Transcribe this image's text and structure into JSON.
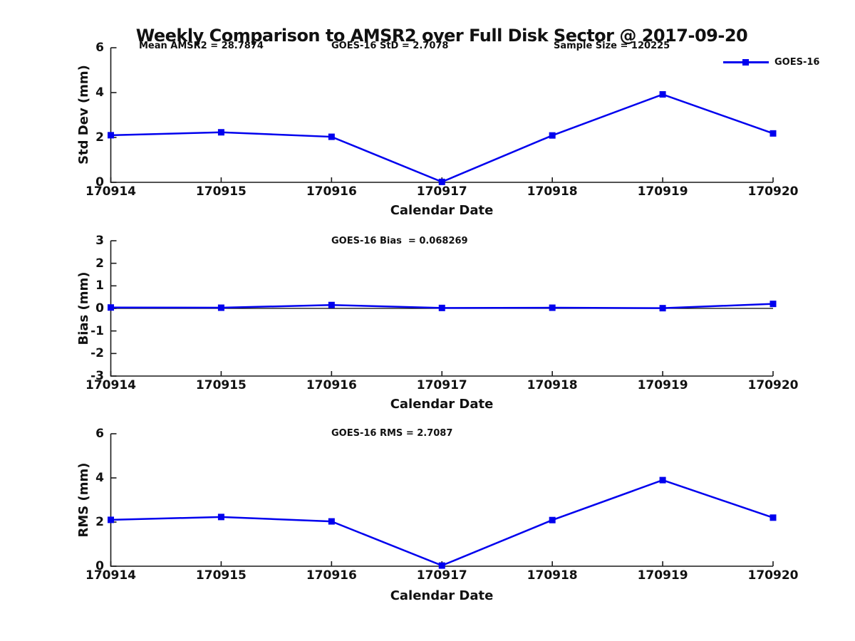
{
  "figure": {
    "title": "Weekly Comparison to AMSR2 over Full Disk Sector @ 2017-09-20",
    "background": "#ffffff"
  },
  "colors": {
    "series": "#0000EE",
    "axis": "#1a1a1a",
    "text": "#111111",
    "zero_line": "#000000"
  },
  "legend": {
    "label": "GOES-16",
    "marker": "filled-square",
    "position": "top-right"
  },
  "annotations": {
    "mean_amsr2": "Mean AMSR2 = 28.7874",
    "goes_std": "GOES-16 StD = 2.7078",
    "sample_size": "Sample Size = 120225",
    "goes_bias": "GOES-16 Bias  = 0.068269",
    "goes_rms": "GOES-16 RMS = 2.7087"
  },
  "chart_data": [
    {
      "type": "line",
      "name": "std-dev",
      "categories": [
        "170914",
        "170915",
        "170916",
        "170917",
        "170918",
        "170919",
        "170920"
      ],
      "series": [
        {
          "name": "GOES-16",
          "values": [
            2.1,
            2.23,
            2.03,
            0.02,
            2.09,
            3.92,
            2.18
          ]
        }
      ],
      "xlabel": "Calendar Date",
      "ylabel": "Std Dev (mm)",
      "ylim": [
        0,
        6
      ],
      "yticks": [
        0,
        2,
        4,
        6
      ],
      "grid": false,
      "zero_line": false,
      "legend_position": "top-right"
    },
    {
      "type": "line",
      "name": "bias",
      "categories": [
        "170914",
        "170915",
        "170916",
        "170917",
        "170918",
        "170919",
        "170920"
      ],
      "series": [
        {
          "name": "GOES-16",
          "values": [
            0.04,
            0.03,
            0.15,
            0.02,
            0.03,
            0.01,
            0.2
          ]
        }
      ],
      "xlabel": "Calendar Date",
      "ylabel": "Bias (mm)",
      "ylim": [
        -3,
        3
      ],
      "yticks": [
        3,
        2,
        1,
        0,
        -1,
        -2,
        -3
      ],
      "grid": false,
      "zero_line": true,
      "legend_position": "none"
    },
    {
      "type": "line",
      "name": "rms",
      "categories": [
        "170914",
        "170915",
        "170916",
        "170917",
        "170918",
        "170919",
        "170920"
      ],
      "series": [
        {
          "name": "GOES-16",
          "values": [
            2.1,
            2.23,
            2.03,
            0.03,
            2.09,
            3.9,
            2.2
          ]
        }
      ],
      "xlabel": "Calendar Date",
      "ylabel": "RMS (mm)",
      "ylim": [
        0,
        6
      ],
      "yticks": [
        0,
        2,
        4,
        6
      ],
      "grid": false,
      "zero_line": false,
      "legend_position": "none"
    }
  ]
}
